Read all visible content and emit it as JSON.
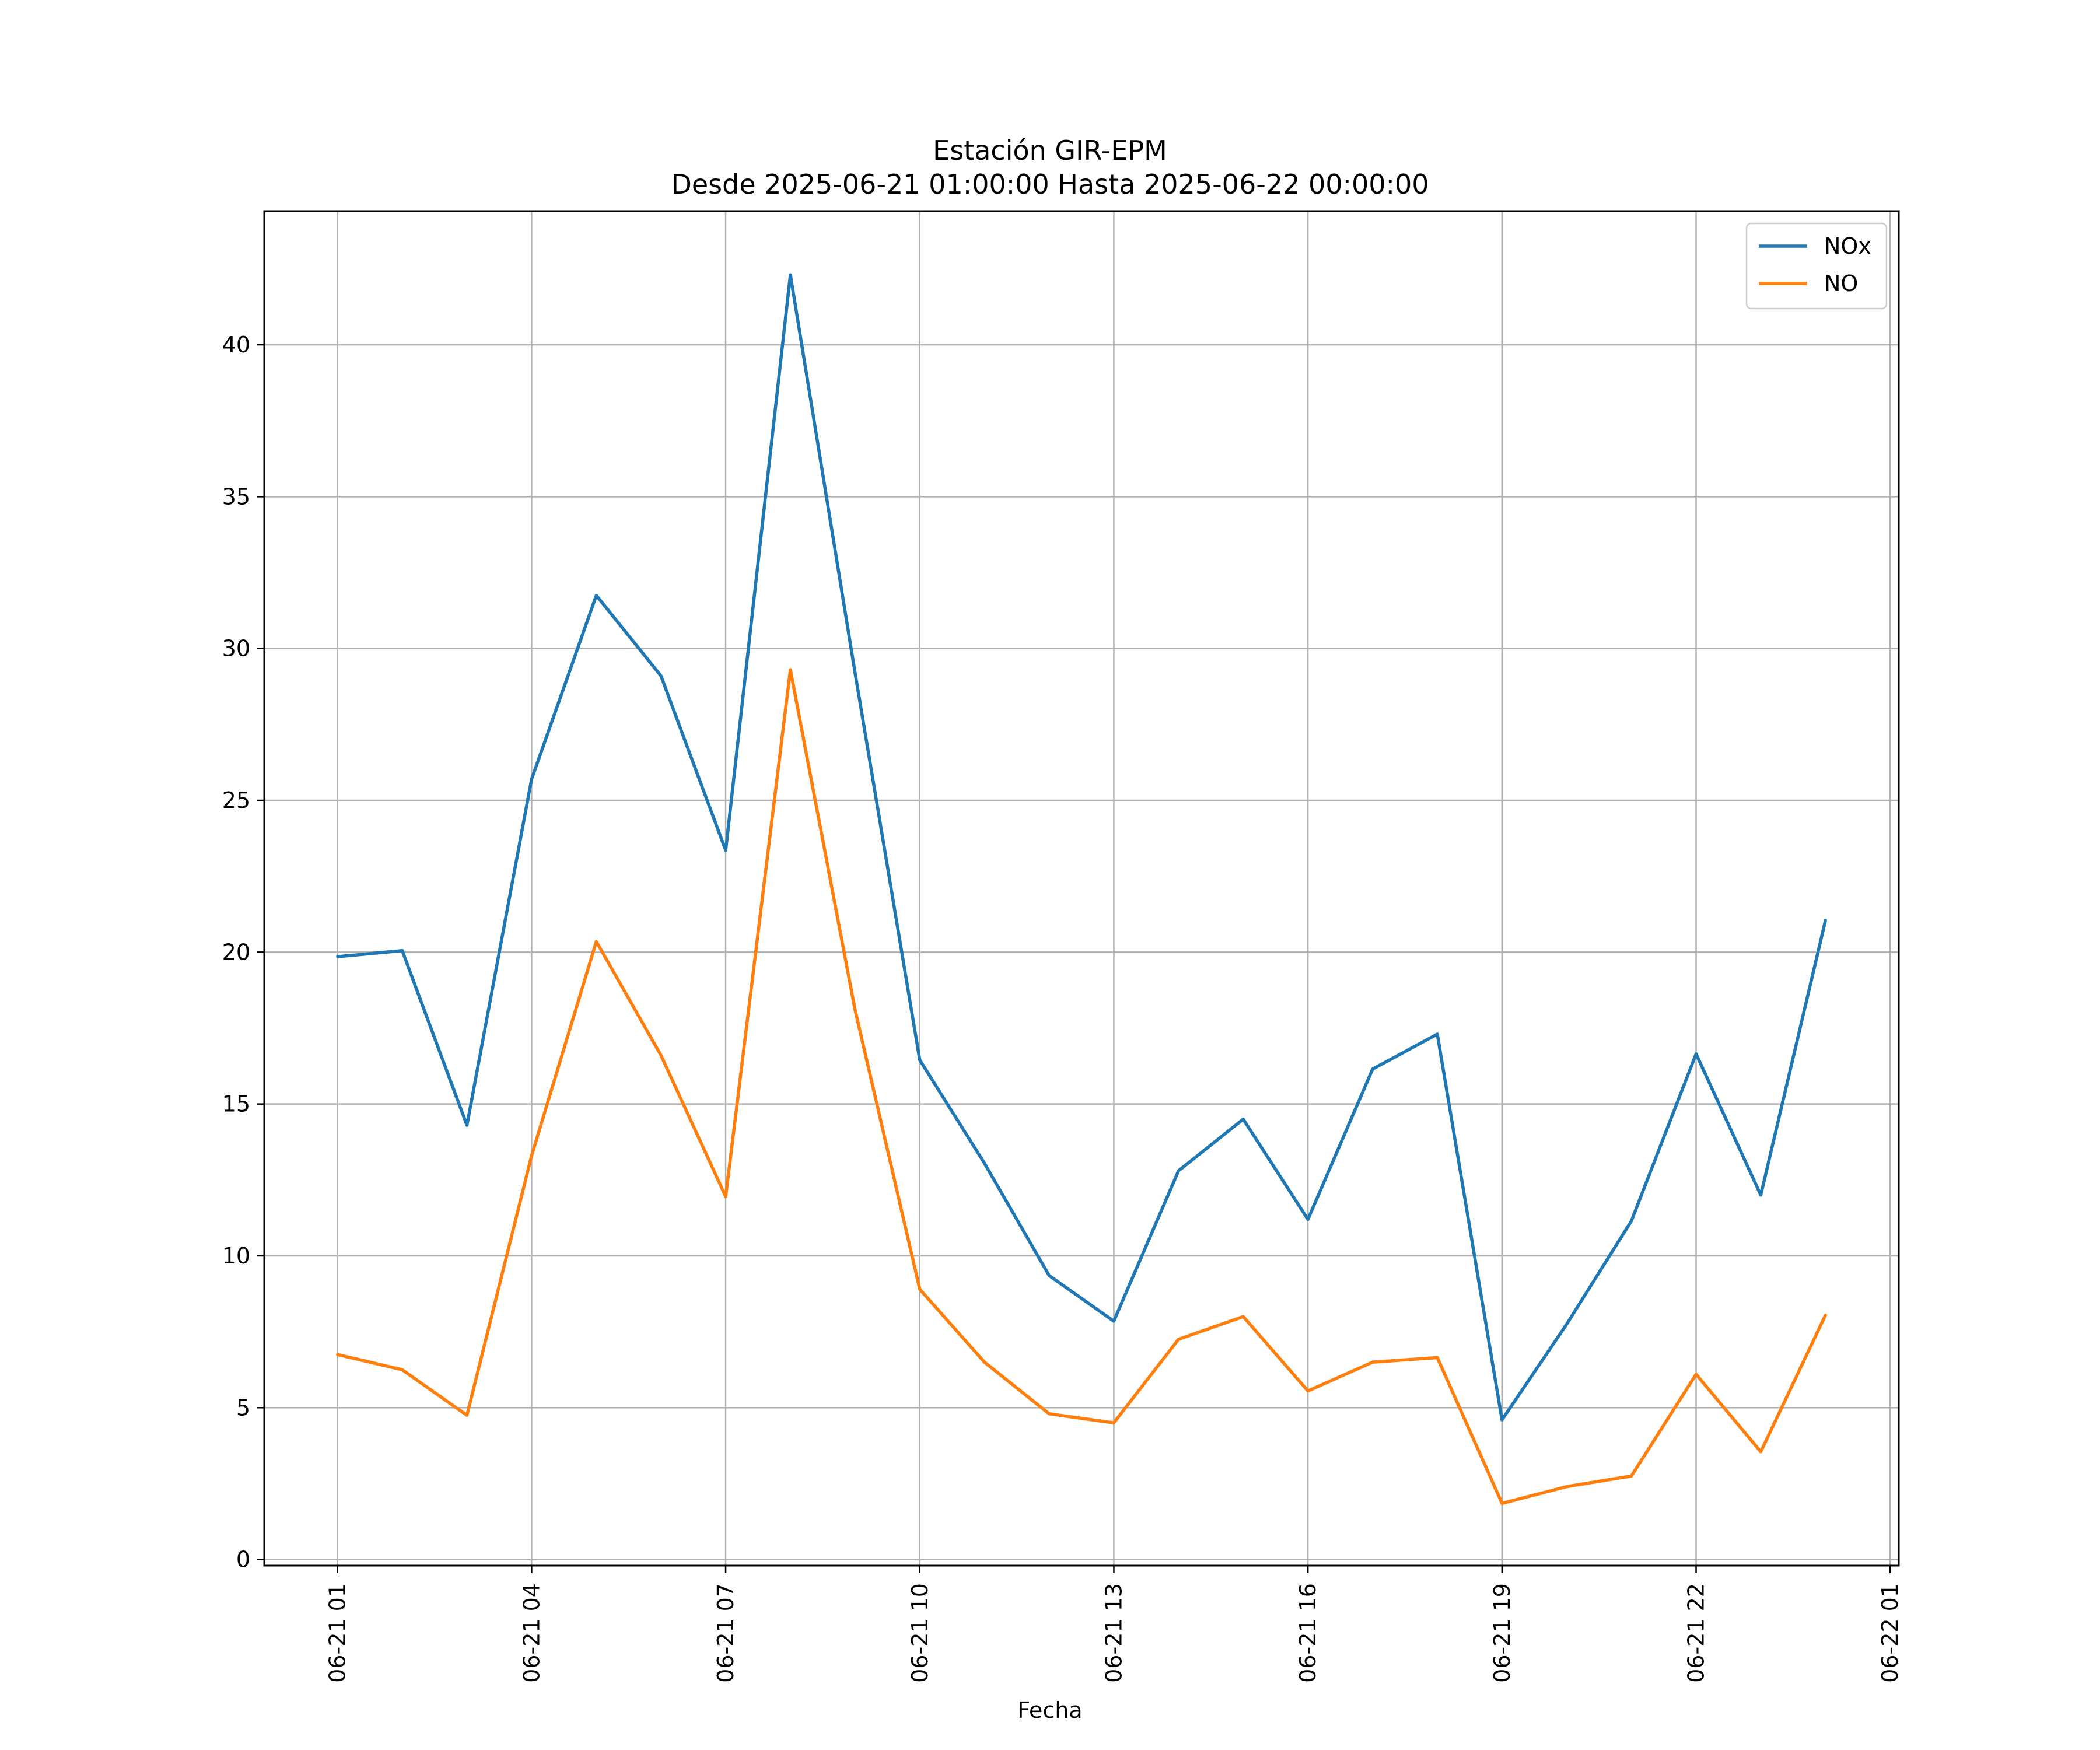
{
  "chart_data": {
    "type": "line",
    "title": "Estación GIR-EPM",
    "subtitle": "Desde 2025-06-21 01:00:00 Hasta 2025-06-22 00:00:00",
    "xlabel": "Fecha",
    "ylabel": "",
    "grid": true,
    "legend_position": "top-right",
    "x": [
      "2025-06-21 01:00",
      "2025-06-21 02:00",
      "2025-06-21 03:00",
      "2025-06-21 04:00",
      "2025-06-21 05:00",
      "2025-06-21 06:00",
      "2025-06-21 07:00",
      "2025-06-21 08:00",
      "2025-06-21 09:00",
      "2025-06-21 10:00",
      "2025-06-21 11:00",
      "2025-06-21 12:00",
      "2025-06-21 13:00",
      "2025-06-21 14:00",
      "2025-06-21 15:00",
      "2025-06-21 16:00",
      "2025-06-21 17:00",
      "2025-06-21 18:00",
      "2025-06-21 19:00",
      "2025-06-21 20:00",
      "2025-06-21 21:00",
      "2025-06-21 22:00",
      "2025-06-21 23:00",
      "2025-06-22 00:00"
    ],
    "x_ticks": [
      "06-21 01",
      "06-21 04",
      "06-21 07",
      "06-21 10",
      "06-21 13",
      "06-21 16",
      "06-21 19",
      "06-21 22",
      "06-22 01"
    ],
    "y_ticks": [
      0,
      5,
      10,
      15,
      20,
      25,
      30,
      35,
      40
    ],
    "xlim": [
      "2025-06-20 23:52",
      "2025-06-22 01:08"
    ],
    "ylim": [
      -0.2,
      44.4
    ],
    "series": [
      {
        "name": "NOx",
        "color": "#1f77b4",
        "values": [
          19.85,
          20.05,
          14.3,
          25.7,
          31.75,
          29.1,
          23.35,
          42.3,
          29.2,
          16.45,
          13.05,
          9.35,
          7.85,
          12.8,
          14.5,
          11.2,
          16.15,
          17.3,
          4.6,
          7.75,
          11.15,
          16.65,
          12.0,
          21.05
        ]
      },
      {
        "name": "NO",
        "color": "#ff7f0e",
        "values": [
          6.75,
          6.25,
          4.75,
          13.3,
          20.35,
          16.6,
          11.95,
          29.3,
          18.1,
          8.9,
          6.5,
          4.8,
          4.5,
          7.25,
          8.0,
          5.55,
          6.5,
          6.65,
          1.85,
          2.4,
          2.75,
          6.1,
          3.55,
          8.05
        ]
      }
    ]
  }
}
